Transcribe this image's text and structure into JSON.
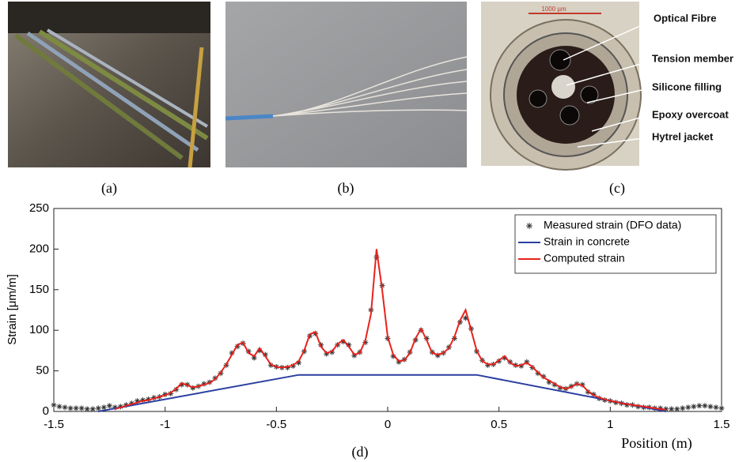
{
  "figure": {
    "captions": [
      "(a)",
      "(b)",
      "(c)",
      "(d)"
    ],
    "scale_bar": "1000 µm",
    "callouts": [
      "Optical Fibre",
      "Tension member",
      "Silicone filling",
      "Epoxy overcoat",
      "Hytrel jacket"
    ]
  },
  "chart_data": {
    "type": "line",
    "x_label": "Position (m)",
    "y_label": "Strain [μm/m]",
    "xlim": [
      -1.5,
      1.5
    ],
    "xticks": [
      -1.5,
      -1,
      -0.5,
      0,
      0.5,
      1,
      1.5
    ],
    "ylim": [
      0,
      250
    ],
    "yticks": [
      0,
      50,
      100,
      150,
      200,
      250
    ],
    "grid": false,
    "legend": "upper right",
    "x": [
      -1.5,
      -1.475,
      -1.45,
      -1.425,
      -1.4,
      -1.375,
      -1.35,
      -1.325,
      -1.3,
      -1.275,
      -1.25,
      -1.225,
      -1.2,
      -1.175,
      -1.15,
      -1.125,
      -1.1,
      -1.075,
      -1.05,
      -1.025,
      -1,
      -0.975,
      -0.95,
      -0.925,
      -0.9,
      -0.875,
      -0.85,
      -0.825,
      -0.8,
      -0.775,
      -0.75,
      -0.725,
      -0.7,
      -0.675,
      -0.65,
      -0.625,
      -0.6,
      -0.575,
      -0.55,
      -0.525,
      -0.5,
      -0.475,
      -0.45,
      -0.425,
      -0.4,
      -0.375,
      -0.35,
      -0.325,
      -0.3,
      -0.275,
      -0.25,
      -0.225,
      -0.2,
      -0.175,
      -0.15,
      -0.125,
      -0.1,
      -0.075,
      -0.05,
      -0.025,
      0,
      0.025,
      0.05,
      0.075,
      0.1,
      0.125,
      0.15,
      0.175,
      0.2,
      0.225,
      0.25,
      0.275,
      0.3,
      0.325,
      0.35,
      0.375,
      0.4,
      0.425,
      0.45,
      0.475,
      0.5,
      0.525,
      0.55,
      0.575,
      0.6,
      0.625,
      0.65,
      0.675,
      0.7,
      0.725,
      0.75,
      0.775,
      0.8,
      0.825,
      0.85,
      0.875,
      0.9,
      0.925,
      0.95,
      0.975,
      1,
      1.025,
      1.05,
      1.075,
      1.1,
      1.125,
      1.15,
      1.175,
      1.2,
      1.225,
      1.25,
      1.275,
      1.3,
      1.325,
      1.35,
      1.375,
      1.4,
      1.425,
      1.45,
      1.475,
      1.5
    ],
    "series": [
      {
        "name": "Measured strain (DFO data)",
        "color": "#333333",
        "style": "markers",
        "values": [
          8,
          6,
          5,
          4,
          4,
          4,
          3,
          3,
          4,
          5,
          7,
          5,
          6,
          8,
          10,
          13,
          14,
          15,
          17,
          18,
          21,
          22,
          27,
          33,
          33,
          29,
          31,
          34,
          36,
          41,
          47,
          57,
          72,
          80,
          84,
          74,
          66,
          75,
          70,
          57,
          55,
          54,
          54,
          56,
          60,
          74,
          93,
          96,
          82,
          71,
          73,
          82,
          86,
          82,
          69,
          73,
          85,
          125,
          190,
          155,
          90,
          68,
          61,
          64,
          73,
          88,
          100,
          90,
          73,
          69,
          72,
          79,
          90,
          110,
          115,
          102,
          74,
          63,
          57,
          58,
          62,
          66,
          61,
          57,
          56,
          61,
          54,
          47,
          43,
          36,
          33,
          29,
          28,
          31,
          34,
          33,
          24,
          21,
          16,
          14,
          13,
          11,
          10,
          8,
          8,
          6,
          5,
          5,
          4,
          4,
          3,
          3,
          3,
          4,
          5,
          6,
          7,
          7,
          6,
          5,
          4
        ]
      },
      {
        "name": "Strain in concrete",
        "color": "#2b3fa0",
        "style": "line",
        "x": [
          -1.3,
          -0.4,
          0.4,
          1.25
        ],
        "values": [
          0,
          45,
          45,
          0
        ]
      },
      {
        "name": "Computed strain",
        "color": "#e8221c",
        "style": "line",
        "values": [
          null,
          null,
          null,
          null,
          null,
          null,
          null,
          null,
          null,
          null,
          null,
          3,
          5,
          7,
          9,
          11,
          13,
          14,
          16,
          18,
          20,
          23,
          28,
          35,
          32,
          30,
          31,
          33,
          35,
          40,
          48,
          58,
          70,
          82,
          85,
          72,
          68,
          78,
          68,
          58,
          55,
          54,
          55,
          57,
          62,
          75,
          95,
          98,
          80,
          72,
          74,
          83,
          88,
          80,
          70,
          72,
          88,
          120,
          200,
          150,
          92,
          70,
          62,
          63,
          72,
          90,
          102,
          88,
          72,
          70,
          72,
          78,
          92,
          112,
          125,
          100,
          75,
          62,
          58,
          58,
          63,
          68,
          60,
          56,
          57,
          60,
          55,
          48,
          42,
          38,
          34,
          30,
          28,
          30,
          34,
          32,
          25,
          20,
          17,
          15,
          13,
          12,
          10,
          9,
          8,
          7,
          6,
          5,
          4,
          3,
          2,
          null,
          null,
          null,
          null,
          null,
          null,
          null,
          null,
          null,
          null
        ]
      }
    ]
  }
}
